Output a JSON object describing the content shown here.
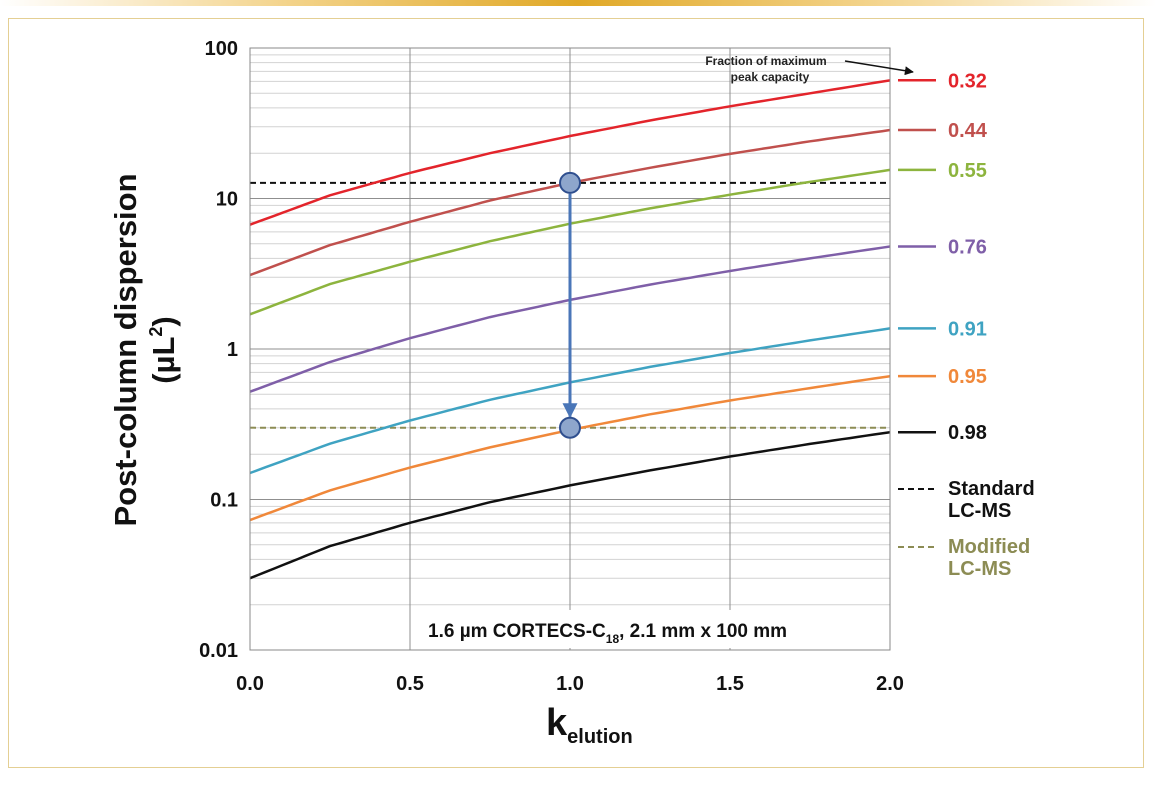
{
  "colors": {
    "accent_bar": "#e0a826",
    "frame_border": "#e4cf93",
    "marker_fill": "#8ea6cc",
    "marker_stroke": "#2f4f8f",
    "arrow": "#4a76b8"
  },
  "chart_data": {
    "type": "line",
    "y_scale": "log",
    "xlabel_main": "k",
    "xlabel_sub": "elution",
    "ylabel_line1": "Post-column dispersion",
    "ylabel_line2_pre": "(µL",
    "ylabel_line2_sup": "2",
    "ylabel_line2_post": ")",
    "xlim": [
      0,
      2
    ],
    "ylim": [
      0.01,
      100
    ],
    "x_ticks": [
      0,
      0.5,
      1,
      1.5,
      2
    ],
    "x_tick_labels": [
      "0.0",
      "0.5",
      "1.0",
      "1.5",
      "2.0"
    ],
    "y_ticks": [
      0.01,
      0.1,
      1,
      10,
      100
    ],
    "y_tick_labels": [
      "0.01",
      "0.1",
      "1",
      "10",
      "100"
    ],
    "series": [
      {
        "name": "0.32",
        "color": "#e3242b",
        "x": [
          0,
          0.25,
          0.5,
          0.75,
          1.0,
          1.25,
          1.5,
          1.75,
          2.0
        ],
        "values": [
          6.7,
          10.5,
          14.8,
          20.0,
          26.0,
          33.0,
          41.0,
          50.0,
          61.0
        ]
      },
      {
        "name": "0.44",
        "color": "#c0504d",
        "x": [
          0,
          0.25,
          0.5,
          0.75,
          1.0,
          1.25,
          1.5,
          1.75,
          2.0
        ],
        "values": [
          3.1,
          4.9,
          7.0,
          9.7,
          12.7,
          16.0,
          19.8,
          24.0,
          28.5
        ]
      },
      {
        "name": "0.55",
        "color": "#8db43e",
        "x": [
          0,
          0.25,
          0.5,
          0.75,
          1.0,
          1.25,
          1.5,
          1.75,
          2.0
        ],
        "values": [
          1.7,
          2.7,
          3.8,
          5.2,
          6.8,
          8.6,
          10.6,
          12.9,
          15.5
        ]
      },
      {
        "name": "0.76",
        "color": "#7f5fa8",
        "x": [
          0,
          0.25,
          0.5,
          0.75,
          1.0,
          1.25,
          1.5,
          1.75,
          2.0
        ],
        "values": [
          0.52,
          0.82,
          1.18,
          1.63,
          2.12,
          2.68,
          3.3,
          4.0,
          4.8
        ]
      },
      {
        "name": "0.91",
        "color": "#3fa3c2",
        "x": [
          0,
          0.25,
          0.5,
          0.75,
          1.0,
          1.25,
          1.5,
          1.75,
          2.0
        ],
        "values": [
          0.15,
          0.235,
          0.335,
          0.46,
          0.6,
          0.76,
          0.94,
          1.14,
          1.37
        ]
      },
      {
        "name": "0.95",
        "color": "#f0883a",
        "x": [
          0,
          0.25,
          0.5,
          0.75,
          1.0,
          1.25,
          1.5,
          1.75,
          2.0
        ],
        "values": [
          0.073,
          0.115,
          0.163,
          0.222,
          0.29,
          0.368,
          0.455,
          0.55,
          0.66
        ]
      },
      {
        "name": "0.98",
        "color": "#111111",
        "x": [
          0,
          0.25,
          0.5,
          0.75,
          1.0,
          1.25,
          1.5,
          1.75,
          2.0
        ],
        "values": [
          0.03,
          0.049,
          0.07,
          0.096,
          0.124,
          0.156,
          0.193,
          0.234,
          0.28
        ]
      }
    ],
    "reference_lines": [
      {
        "name": "Standard LC-MS",
        "label_lines": [
          "Standard",
          "LC-MS"
        ],
        "value": 12.7,
        "color": "#111111",
        "label_color": "#111111",
        "style": "dashed"
      },
      {
        "name": "Modified LC-MS",
        "label_lines": [
          "Modified",
          "LC-MS"
        ],
        "value": 0.3,
        "color": "#8c8c54",
        "label_color": "#8c8c54",
        "style": "dashed"
      }
    ],
    "markers": [
      {
        "x": 1.0,
        "y": 12.7
      },
      {
        "x": 1.0,
        "y": 0.3
      }
    ],
    "arrow": {
      "x": 1.0,
      "from": 12.7,
      "to": 0.3
    },
    "annotation": {
      "line1": "Fraction of maximum",
      "line2": "peak capacity"
    },
    "subtitle": {
      "pre": "1.6 µm CORTECS-C",
      "sub": "18",
      "post": ", 2.1 mm x 100 mm"
    },
    "grid": true,
    "legend": "right"
  }
}
